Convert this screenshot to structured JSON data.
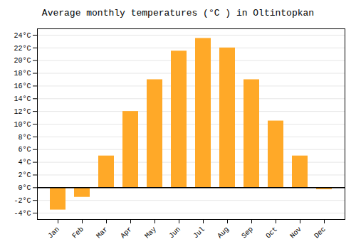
{
  "chart_data": {
    "type": "bar",
    "title": "Average monthly temperatures (°C ) in Oltintopkan",
    "categories": [
      "Jan",
      "Feb",
      "Mar",
      "Apr",
      "May",
      "Jun",
      "Jul",
      "Aug",
      "Sep",
      "Oct",
      "Nov",
      "Dec"
    ],
    "values": [
      -3.5,
      -1.5,
      5.0,
      12.0,
      17.0,
      21.5,
      23.5,
      22.0,
      17.0,
      10.5,
      5.0,
      -0.3
    ],
    "color": "#FFA928",
    "ylim": [
      -5,
      25
    ],
    "yticks": [
      {
        "value": -4,
        "label": "-4°C"
      },
      {
        "value": -2,
        "label": "-2°C"
      },
      {
        "value": 0,
        "label": "0°C"
      },
      {
        "value": 2,
        "label": "2°C"
      },
      {
        "value": 4,
        "label": "4°C"
      },
      {
        "value": 6,
        "label": "6°C"
      },
      {
        "value": 8,
        "label": "8°C"
      },
      {
        "value": 10,
        "label": "10°C"
      },
      {
        "value": 12,
        "label": "12°C"
      },
      {
        "value": 14,
        "label": "14°C"
      },
      {
        "value": 16,
        "label": "16°C"
      },
      {
        "value": 18,
        "label": "18°C"
      },
      {
        "value": 20,
        "label": "20°C"
      },
      {
        "value": 22,
        "label": "22°C"
      },
      {
        "value": 24,
        "label": "24°C"
      }
    ],
    "grid": true
  }
}
